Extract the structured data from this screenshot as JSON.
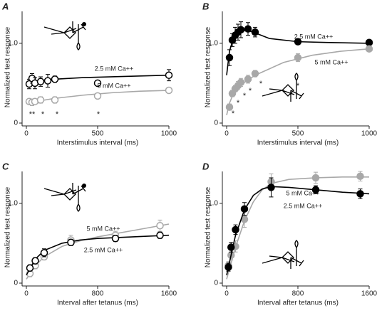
{
  "chart_data": [
    {
      "type": "scatter",
      "panel": "A",
      "xlabel": "Interstimulus interval (ms)",
      "ylabel": "Normalized test response",
      "xlim": [
        0,
        1000
      ],
      "ylim": [
        0,
        1.4
      ],
      "xticks": [
        0,
        500,
        1000
      ],
      "yticks": [
        0,
        {
          "value": 1,
          "label": "1.0"
        }
      ],
      "annotations": [
        "**",
        "*",
        "*",
        "*"
      ],
      "series": [
        {
          "name": "2.5 mM Ca++",
          "color": "#000000",
          "marker": "open",
          "x": [
            20,
            40,
            60,
            100,
            150,
            200,
            500,
            1000
          ],
          "values": [
            0.49,
            0.56,
            0.5,
            0.52,
            0.53,
            0.55,
            0.5,
            0.6
          ],
          "errors": [
            0.06,
            0.06,
            0.07,
            0.06,
            0.08,
            0.04,
            0.03,
            0.07
          ],
          "fit_x": [
            10,
            50,
            100,
            200,
            400,
            600,
            800,
            1000
          ],
          "fit": [
            0.5,
            0.52,
            0.53,
            0.55,
            0.57,
            0.58,
            0.59,
            0.6
          ]
        },
        {
          "name": "5 mM Ca++",
          "color": "#a8a8a8",
          "marker": "open",
          "x": [
            20,
            40,
            60,
            100,
            200,
            500,
            1000
          ],
          "values": [
            0.27,
            0.26,
            0.27,
            0.29,
            0.29,
            0.34,
            0.41
          ],
          "errors": [
            0.03,
            0.04,
            0.03,
            0.04,
            0.04,
            0.03,
            0.03
          ],
          "fit_x": [
            10,
            50,
            100,
            200,
            400,
            600,
            800,
            1000
          ],
          "fit": [
            0.25,
            0.27,
            0.28,
            0.31,
            0.35,
            0.38,
            0.4,
            0.41
          ]
        }
      ]
    },
    {
      "type": "scatter",
      "panel": "B",
      "xlabel": "Interstimulus interval (ms)",
      "ylabel": "Normalized test response",
      "xlim": [
        0,
        1000
      ],
      "ylim": [
        0,
        1.4
      ],
      "xticks": [
        0,
        500,
        1000
      ],
      "yticks": [
        0,
        {
          "value": 1,
          "label": "1.0"
        }
      ],
      "annotations": [
        "*",
        "*",
        "*",
        "*",
        "*",
        "*"
      ],
      "series": [
        {
          "name": "2.5 mM Ca++",
          "color": "#000000",
          "marker": "filled",
          "x": [
            20,
            40,
            60,
            80,
            100,
            150,
            200,
            500,
            1000
          ],
          "values": [
            0.82,
            1.04,
            1.1,
            1.14,
            1.17,
            1.18,
            1.14,
            1.02,
            1.01
          ],
          "errors": [
            0.1,
            0.08,
            0.1,
            0.1,
            0.1,
            0.08,
            0.06,
            0.03,
            0.03
          ],
          "fit_x": [
            0,
            20,
            50,
            100,
            150,
            200,
            300,
            500,
            700,
            1000
          ],
          "fit": [
            0.6,
            0.9,
            1.08,
            1.16,
            1.16,
            1.13,
            1.06,
            1.02,
            1.01,
            1.0
          ]
        },
        {
          "name": "5 mM Ca++",
          "color": "#a8a8a8",
          "marker": "filled",
          "x": [
            20,
            40,
            60,
            80,
            100,
            150,
            200,
            500,
            1000
          ],
          "values": [
            0.2,
            0.37,
            0.43,
            0.47,
            0.51,
            0.55,
            0.62,
            0.82,
            0.93
          ],
          "errors": [
            0.04,
            0.04,
            0.04,
            0.05,
            0.05,
            0.05,
            0.04,
            0.05,
            0.03
          ],
          "fit_x": [
            0,
            20,
            50,
            100,
            200,
            400,
            600,
            800,
            1000
          ],
          "fit": [
            0.1,
            0.25,
            0.38,
            0.48,
            0.6,
            0.76,
            0.85,
            0.9,
            0.93
          ]
        }
      ]
    },
    {
      "type": "scatter",
      "panel": "C",
      "xlabel": "Interval after tetanus (ms)",
      "ylabel": "Normalized test response",
      "xlim": [
        0,
        1600
      ],
      "ylim": [
        0,
        1.4
      ],
      "xticks": [
        0,
        800,
        1600
      ],
      "yticks": [
        0,
        {
          "value": 1,
          "label": "1.0"
        }
      ],
      "annotations": [],
      "series": [
        {
          "name": "5 mM Ca++",
          "color": "#a8a8a8",
          "marker": "open",
          "x": [
            40,
            100,
            200,
            500,
            1000,
            1500
          ],
          "values": [
            0.12,
            0.22,
            0.33,
            0.54,
            0.6,
            0.72
          ],
          "errors": [
            0.04,
            0.04,
            0.04,
            0.06,
            0.05,
            0.07
          ],
          "fit_x": [
            0,
            100,
            200,
            400,
            600,
            800,
            1000,
            1200,
            1400,
            1600
          ],
          "fit": [
            0.05,
            0.22,
            0.33,
            0.46,
            0.53,
            0.58,
            0.62,
            0.66,
            0.7,
            0.74
          ]
        },
        {
          "name": "2.5 mM Ca++",
          "color": "#000000",
          "marker": "open",
          "x": [
            40,
            100,
            200,
            500,
            1000,
            1500
          ],
          "values": [
            0.19,
            0.28,
            0.38,
            0.51,
            0.56,
            0.6
          ],
          "errors": [
            0.04,
            0.04,
            0.05,
            0.04,
            0.04,
            0.04
          ],
          "fit_x": [
            0,
            100,
            200,
            400,
            600,
            800,
            1000,
            1200,
            1400,
            1600
          ],
          "fit": [
            0.1,
            0.3,
            0.41,
            0.5,
            0.54,
            0.56,
            0.57,
            0.58,
            0.59,
            0.6
          ]
        }
      ]
    },
    {
      "type": "scatter",
      "panel": "D",
      "xlabel": "Interval after tetanus (ms)",
      "ylabel": "Normalized test response",
      "xlim": [
        0,
        1600
      ],
      "ylim": [
        0,
        1.4
      ],
      "xticks": [
        0,
        800,
        1600
      ],
      "yticks": [
        0,
        {
          "value": 1,
          "label": "1.0"
        }
      ],
      "annotations": [],
      "series": [
        {
          "name": "5 mM Ca++",
          "color": "#a8a8a8",
          "marker": "filled",
          "x": [
            20,
            50,
            100,
            200,
            500,
            1000,
            1500
          ],
          "values": [
            0.22,
            0.35,
            0.46,
            0.8,
            1.27,
            1.32,
            1.34
          ],
          "errors": [
            0.05,
            0.06,
            0.07,
            0.1,
            0.1,
            0.07,
            0.06
          ],
          "fit_x": [
            0,
            100,
            200,
            300,
            400,
            500,
            700,
            1000,
            1300,
            1600
          ],
          "fit": [
            0.05,
            0.45,
            0.78,
            1.02,
            1.17,
            1.25,
            1.3,
            1.32,
            1.33,
            1.33
          ]
        },
        {
          "name": "2.5 mM Ca++",
          "color": "#000000",
          "marker": "filled",
          "x": [
            20,
            50,
            100,
            200,
            500,
            1000,
            1500
          ],
          "values": [
            0.2,
            0.45,
            0.67,
            0.93,
            1.2,
            1.17,
            1.12
          ],
          "errors": [
            0.05,
            0.06,
            0.06,
            0.08,
            0.12,
            0.05,
            0.06
          ],
          "fit_x": [
            0,
            100,
            200,
            300,
            400,
            500,
            700,
            1000,
            1300,
            1600
          ],
          "fit": [
            0.1,
            0.6,
            0.92,
            1.1,
            1.18,
            1.21,
            1.2,
            1.17,
            1.14,
            1.12
          ]
        }
      ]
    }
  ]
}
